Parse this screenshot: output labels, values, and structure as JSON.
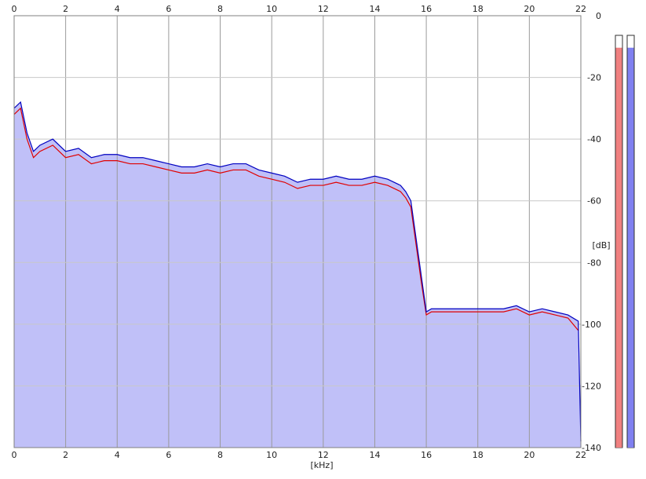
{
  "chart_data": {
    "type": "area",
    "title": "",
    "xlabel": "[kHz]",
    "ylabel": "[dB]",
    "xlim": [
      0,
      22
    ],
    "ylim": [
      -140,
      0
    ],
    "x_ticks": [
      0,
      2,
      4,
      6,
      8,
      10,
      12,
      14,
      16,
      18,
      20,
      22
    ],
    "y_ticks": [
      0,
      -20,
      -40,
      -60,
      -80,
      -100,
      -120,
      -140
    ],
    "x_tick_labels": [
      "0",
      "2",
      "4",
      "6",
      "8",
      "10",
      "12",
      "14",
      "16",
      "18",
      "20",
      "22"
    ],
    "y_tick_labels": [
      "0",
      "-20",
      "-40",
      "-60",
      "-80",
      "-100",
      "-120",
      "-140"
    ],
    "grid": true,
    "x_tick_position": "top and bottom",
    "y_tick_position": "right",
    "fill_color": "#c0c0f8",
    "series": [
      {
        "color": "#0000c0",
        "x": [
          0,
          0.25,
          0.5,
          0.75,
          1,
          1.5,
          2,
          2.5,
          3,
          3.5,
          4,
          4.5,
          5,
          5.5,
          6,
          6.5,
          7,
          7.5,
          8,
          8.5,
          9,
          9.5,
          10,
          10.5,
          11,
          11.5,
          12,
          12.5,
          13,
          13.5,
          14,
          14.5,
          15,
          15.2,
          15.4,
          15.6,
          15.8,
          16,
          16.2,
          16.5,
          17,
          17.5,
          18,
          18.5,
          19,
          19.5,
          20,
          20.5,
          21,
          21.5,
          21.9,
          22
        ],
        "y": [
          -30,
          -28,
          -38,
          -44,
          -42,
          -40,
          -44,
          -43,
          -46,
          -45,
          -45,
          -46,
          -46,
          -47,
          -48,
          -49,
          -49,
          -48,
          -49,
          -48,
          -48,
          -50,
          -51,
          -52,
          -54,
          -53,
          -53,
          -52,
          -53,
          -53,
          -52,
          -53,
          -55,
          -57,
          -60,
          -72,
          -84,
          -96,
          -95,
          -95,
          -95,
          -95,
          -95,
          -95,
          -95,
          -94,
          -96,
          -95,
          -96,
          -97,
          -99,
          -138
        ]
      },
      {
        "color": "#e00000",
        "x": [
          0,
          0.25,
          0.5,
          0.75,
          1,
          1.5,
          2,
          2.5,
          3,
          3.5,
          4,
          4.5,
          5,
          5.5,
          6,
          6.5,
          7,
          7.5,
          8,
          8.5,
          9,
          9.5,
          10,
          10.5,
          11,
          11.5,
          12,
          12.5,
          13,
          13.5,
          14,
          14.5,
          15,
          15.2,
          15.4,
          15.6,
          15.8,
          16,
          16.2,
          16.5,
          17,
          17.5,
          18,
          18.5,
          19,
          19.5,
          20,
          20.5,
          21,
          21.5,
          21.9
        ],
        "y": [
          -32,
          -30,
          -40,
          -46,
          -44,
          -42,
          -46,
          -45,
          -48,
          -47,
          -47,
          -48,
          -48,
          -49,
          -50,
          -51,
          -51,
          -50,
          -51,
          -50,
          -50,
          -52,
          -53,
          -54,
          -56,
          -55,
          -55,
          -54,
          -55,
          -55,
          -54,
          -55,
          -57,
          -59,
          -62,
          -74,
          -86,
          -97,
          -96,
          -96,
          -96,
          -96,
          -96,
          -96,
          -96,
          -95,
          -97,
          -96,
          -97,
          -98,
          -102
        ]
      }
    ],
    "level_meters": [
      {
        "color": "#f08080",
        "level": 0.97
      },
      {
        "color": "#8080f0",
        "level": 0.97
      }
    ]
  }
}
